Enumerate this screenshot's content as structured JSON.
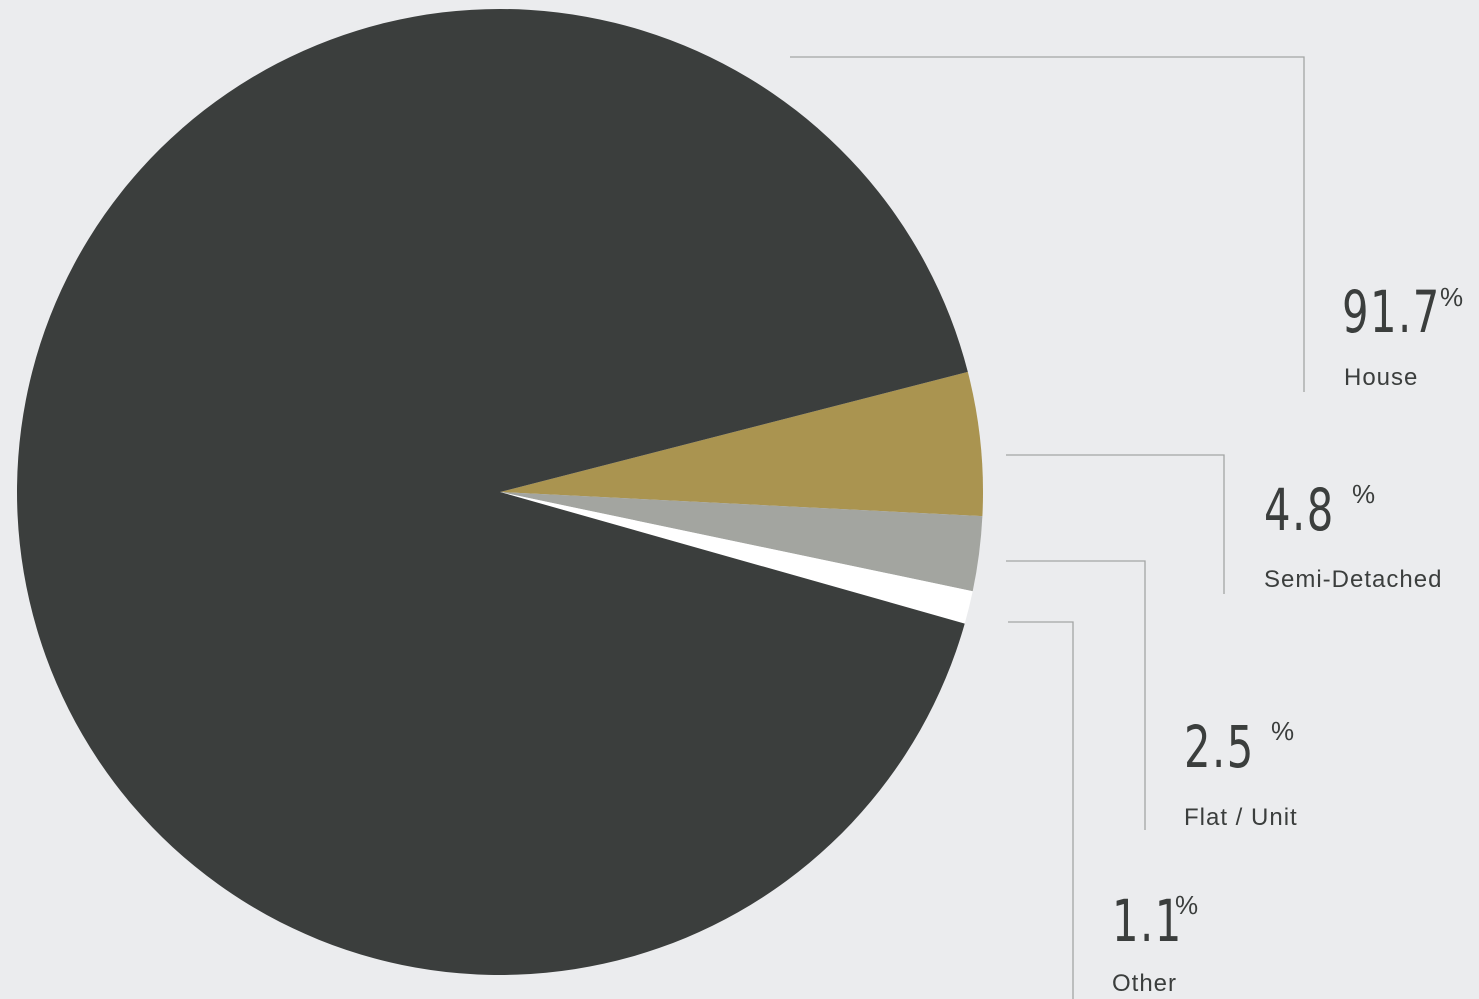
{
  "chart_data": {
    "type": "pie",
    "slices": [
      {
        "label": "House",
        "value": 91.7,
        "value_text": "91.7",
        "color": "#3b3e3d"
      },
      {
        "label": "Semi-Detached",
        "value": 4.8,
        "value_text": "4.8",
        "color": "#aa9450"
      },
      {
        "label": "Flat / Unit",
        "value": 2.5,
        "value_text": "2.5",
        "color": "#a3a5a0"
      },
      {
        "label": "Other",
        "value": 1.1,
        "value_text": "1.1",
        "color": "#ffffff"
      }
    ],
    "unit": "%"
  }
}
